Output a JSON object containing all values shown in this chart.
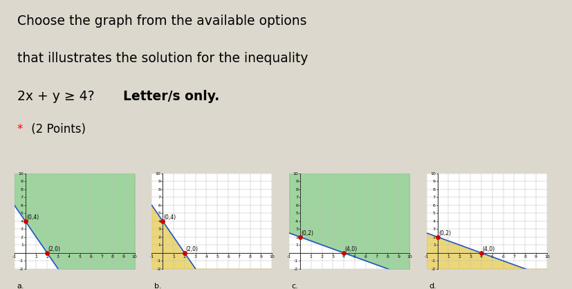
{
  "title_line1": "Choose the graph from the available options",
  "title_line2": "that illustrates the solution for the inequality",
  "title_line3_normal": "2x + y ≥ 4? ",
  "title_line3_bold": "Letter/s only.",
  "subtitle_star": "*",
  "subtitle_text": " (2 Points)",
  "bg_color": "#ddd8ce",
  "panel_bg": "#f5f5f5",
  "graphs": [
    {
      "label": "a.",
      "intercept_x": 2,
      "intercept_y": 4,
      "pt1": [
        0,
        4
      ],
      "pt2": [
        2,
        0
      ],
      "pt1_label": "(0,4)",
      "pt2_label": "(2,0)",
      "shade_color": "#7ec87e",
      "shade_alpha": 0.75,
      "shade_above": true,
      "line_color": "#2255cc",
      "line_width": 1.2
    },
    {
      "label": "b.",
      "intercept_x": 2,
      "intercept_y": 4,
      "pt1": [
        0,
        4
      ],
      "pt2": [
        2,
        0
      ],
      "pt1_label": "(0,4)",
      "pt2_label": "(2,0)",
      "shade_color": "#e8d060",
      "shade_alpha": 0.85,
      "shade_above": false,
      "line_color": "#2255cc",
      "line_width": 1.2
    },
    {
      "label": "c.",
      "intercept_x": 4,
      "intercept_y": 2,
      "pt1": [
        0,
        2
      ],
      "pt2": [
        4,
        0
      ],
      "pt1_label": "(0,2)",
      "pt2_label": "(4,0)",
      "shade_color": "#7ec87e",
      "shade_alpha": 0.75,
      "shade_above": true,
      "line_color": "#2255cc",
      "line_width": 1.2
    },
    {
      "label": "d.",
      "intercept_x": 4,
      "intercept_y": 2,
      "pt1": [
        0,
        2
      ],
      "pt2": [
        4,
        0
      ],
      "pt1_label": "(0,2)",
      "pt2_label": "(4,0)",
      "shade_color": "#e8d060",
      "shade_alpha": 0.85,
      "shade_above": false,
      "line_color": "#2255cc",
      "line_width": 1.2
    }
  ],
  "xlim": [
    -1,
    10
  ],
  "ylim": [
    -2,
    10
  ],
  "tick_fontsize": 4.5,
  "label_fontsize": 5.5,
  "point_color": "#cc0000",
  "point_size": 15
}
